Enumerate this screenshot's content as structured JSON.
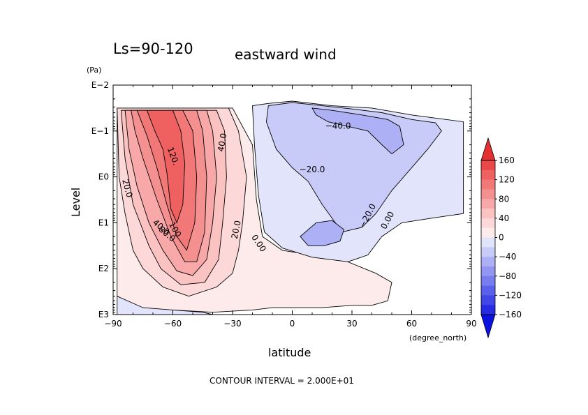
{
  "chart_data": {
    "type": "contour",
    "period_label": "Ls=90-120",
    "title": "eastward wind",
    "xlabel": "latitude",
    "x_units": "(degree_north)",
    "ylabel": "Level",
    "y_units": "(Pa)",
    "xlim": [
      -90,
      90
    ],
    "xticks": [
      -90,
      -60,
      -30,
      0,
      30,
      60,
      90
    ],
    "xtick_labels": [
      "−90",
      "−60",
      "−30",
      "0",
      "30",
      "60",
      "90"
    ],
    "y_log_scale": true,
    "y_decades": [
      -2,
      -1,
      0,
      1,
      2,
      3
    ],
    "ytick_labels": [
      "E−2",
      "E−1",
      "E0",
      "E1",
      "E2",
      "E3"
    ],
    "contour_interval_text": "CONTOUR INTERVAL = 2.000E+01",
    "colorbar": {
      "labels": [
        "160",
        "120",
        "80",
        "40",
        "0",
        "−40",
        "−80",
        "−120",
        "−160"
      ],
      "bins": [
        {
          "from": 160,
          "to": 200,
          "color": "#e43030"
        },
        {
          "from": 140,
          "to": 160,
          "color": "#ea4848"
        },
        {
          "from": 120,
          "to": 140,
          "color": "#ef6060"
        },
        {
          "from": 100,
          "to": 120,
          "color": "#f27878"
        },
        {
          "from": 80,
          "to": 100,
          "color": "#f59090"
        },
        {
          "from": 60,
          "to": 80,
          "color": "#f8a8a8"
        },
        {
          "from": 40,
          "to": 60,
          "color": "#fbc2c2"
        },
        {
          "from": 20,
          "to": 40,
          "color": "#fcd8d8"
        },
        {
          "from": 0,
          "to": 20,
          "color": "#fdeaea"
        },
        {
          "from": -20,
          "to": 0,
          "color": "#e2e4fb"
        },
        {
          "from": -40,
          "to": -20,
          "color": "#c8cbf8"
        },
        {
          "from": -60,
          "to": -40,
          "color": "#adb0f5"
        },
        {
          "from": -80,
          "to": -60,
          "color": "#9296f2"
        },
        {
          "from": -100,
          "to": -80,
          "color": "#777cee"
        },
        {
          "from": -120,
          "to": -100,
          "color": "#5c61eb"
        },
        {
          "from": -140,
          "to": -120,
          "color": "#4147e7"
        },
        {
          "from": -160,
          "to": -140,
          "color": "#262ce4"
        },
        {
          "from": -200,
          "to": -160,
          "color": "#0b12e0"
        }
      ]
    },
    "regions": [
      {
        "name": "southern-westerly-jet",
        "value_range": [
          0,
          20
        ],
        "color": "#fdeaea",
        "outline": [
          [
            -88,
            -1.5
          ],
          [
            -30,
            -1.5
          ],
          [
            -20,
            -0.7
          ],
          [
            -18,
            0.5
          ],
          [
            -15,
            1.3
          ],
          [
            -5,
            1.6
          ],
          [
            25,
            1.8
          ],
          [
            42,
            2.1
          ],
          [
            50,
            2.3
          ],
          [
            48,
            2.7
          ],
          [
            40,
            2.8
          ],
          [
            30,
            2.8
          ],
          [
            15,
            2.85
          ],
          [
            -10,
            2.85
          ],
          [
            -20,
            2.9
          ],
          [
            -40,
            2.95
          ],
          [
            -60,
            2.9
          ],
          [
            -75,
            2.9
          ],
          [
            -88,
            2.6
          ]
        ]
      },
      {
        "name": "jet-20",
        "value_range": [
          20,
          40
        ],
        "color": "#fcd8d8",
        "outline": [
          [
            -88,
            -1.5
          ],
          [
            -32,
            -1.5
          ],
          [
            -27,
            -1.0
          ],
          [
            -23,
            0
          ],
          [
            -25,
            1.0
          ],
          [
            -27,
            1.6
          ],
          [
            -30,
            2.1
          ],
          [
            -38,
            2.4
          ],
          [
            -52,
            2.6
          ],
          [
            -65,
            2.4
          ],
          [
            -75,
            2.0
          ],
          [
            -80,
            1.6
          ],
          [
            -84,
            0.8
          ],
          [
            -87,
            0
          ]
        ]
      },
      {
        "name": "jet-40",
        "value_range": [
          40,
          60
        ],
        "color": "#fbc2c2",
        "outline": [
          [
            -86,
            -1.45
          ],
          [
            -38,
            -1.45
          ],
          [
            -34,
            -1.0
          ],
          [
            -33,
            0
          ],
          [
            -35,
            1.0
          ],
          [
            -37,
            1.8
          ],
          [
            -44,
            2.3
          ],
          [
            -56,
            2.35
          ],
          [
            -66,
            2.0
          ],
          [
            -72,
            1.5
          ],
          [
            -80,
            0.6
          ],
          [
            -84,
            -0.4
          ]
        ]
      },
      {
        "name": "jet-60",
        "value_range": [
          60,
          80
        ],
        "color": "#f8a8a8",
        "outline": [
          [
            -84,
            -1.45
          ],
          [
            -43,
            -1.45
          ],
          [
            -40,
            -1.0
          ],
          [
            -38,
            0
          ],
          [
            -40,
            1.0
          ],
          [
            -43,
            1.8
          ],
          [
            -50,
            2.15
          ],
          [
            -58,
            2.05
          ],
          [
            -65,
            1.6
          ],
          [
            -72,
            1.0
          ],
          [
            -78,
            0.2
          ],
          [
            -82,
            -0.6
          ]
        ]
      },
      {
        "name": "jet-80",
        "value_range": [
          80,
          100
        ],
        "color": "#f59090",
        "outline": [
          [
            -81,
            -1.45
          ],
          [
            -48,
            -1.45
          ],
          [
            -45,
            -1.0
          ],
          [
            -43,
            0
          ],
          [
            -44,
            1.2
          ],
          [
            -48,
            1.85
          ],
          [
            -54,
            1.85
          ],
          [
            -61,
            1.3
          ],
          [
            -68,
            0.5
          ],
          [
            -75,
            -0.4
          ],
          [
            -79,
            -1.0
          ]
        ]
      },
      {
        "name": "jet-100",
        "value_range": [
          100,
          120
        ],
        "color": "#f27878",
        "outline": [
          [
            -78,
            -1.45
          ],
          [
            -55,
            -1.45
          ],
          [
            -50,
            -1.0
          ],
          [
            -48,
            0
          ],
          [
            -49,
            1.0
          ],
          [
            -53,
            1.6
          ],
          [
            -58,
            1.3
          ],
          [
            -63,
            0.6
          ],
          [
            -68,
            -0.2
          ],
          [
            -73,
            -0.9
          ]
        ]
      },
      {
        "name": "jet-core-120",
        "value_range": [
          120,
          140
        ],
        "color": "#ef6060",
        "outline": [
          [
            -73,
            -1.45
          ],
          [
            -60,
            -1.45
          ],
          [
            -56,
            -1.0
          ],
          [
            -54,
            -0.3
          ],
          [
            -55,
            0.6
          ],
          [
            -58,
            1.0
          ],
          [
            -61,
            0.7
          ],
          [
            -63,
            -0.1
          ],
          [
            -65,
            -0.6
          ],
          [
            -69,
            -1.0
          ]
        ]
      },
      {
        "name": "easterly-region",
        "value_range": [
          -20,
          0
        ],
        "color": "#e2e4fb",
        "outline": [
          [
            -20,
            -1.55
          ],
          [
            -12,
            -1.6
          ],
          [
            0,
            -1.65
          ],
          [
            20,
            -1.55
          ],
          [
            40,
            -1.5
          ],
          [
            60,
            -1.35
          ],
          [
            86,
            -1.2
          ],
          [
            86,
            0.8
          ],
          [
            70,
            0.9
          ],
          [
            55,
            1.0
          ],
          [
            45,
            1.3
          ],
          [
            38,
            1.7
          ],
          [
            28,
            1.85
          ],
          [
            10,
            1.75
          ],
          [
            -5,
            1.55
          ],
          [
            -14,
            1.2
          ],
          [
            -17,
            0.4
          ],
          [
            -19,
            -0.7
          ]
        ]
      },
      {
        "name": "easterly-20",
        "value_range": [
          -40,
          -20
        ],
        "color": "#c8cbf8",
        "outline": [
          [
            -12,
            -1.55
          ],
          [
            0,
            -1.62
          ],
          [
            15,
            -1.55
          ],
          [
            30,
            -1.48
          ],
          [
            45,
            -1.4
          ],
          [
            60,
            -1.25
          ],
          [
            72,
            -1.18
          ],
          [
            75,
            -1.0
          ],
          [
            68,
            -0.6
          ],
          [
            60,
            -0.2
          ],
          [
            50,
            0.3
          ],
          [
            42,
            0.8
          ],
          [
            35,
            1.1
          ],
          [
            25,
            1.2
          ],
          [
            15,
            0.6
          ],
          [
            8,
            0.1
          ],
          [
            0,
            -0.2
          ],
          [
            -8,
            -0.6
          ],
          [
            -13,
            -1.2
          ]
        ]
      },
      {
        "name": "easterly-40-upper",
        "value_range": [
          -60,
          -40
        ],
        "color": "#adb0f5",
        "outline": [
          [
            10,
            -1.5
          ],
          [
            20,
            -1.45
          ],
          [
            35,
            -1.35
          ],
          [
            48,
            -1.25
          ],
          [
            54,
            -1.1
          ],
          [
            56,
            -0.7
          ],
          [
            50,
            -0.5
          ],
          [
            45,
            -0.7
          ],
          [
            38,
            -1.0
          ],
          [
            28,
            -1.1
          ],
          [
            18,
            -1.2
          ],
          [
            12,
            -1.35
          ]
        ]
      },
      {
        "name": "easterly-40-lower",
        "value_range": [
          -60,
          -40
        ],
        "color": "#adb0f5",
        "outline": [
          [
            4,
            1.3
          ],
          [
            12,
            1.0
          ],
          [
            20,
            0.95
          ],
          [
            26,
            1.15
          ],
          [
            24,
            1.4
          ],
          [
            16,
            1.5
          ],
          [
            8,
            1.5
          ]
        ]
      },
      {
        "name": "southern-easterly-patch",
        "value_range": [
          -20,
          0
        ],
        "color": "#e2e4fb",
        "outline": [
          [
            -88,
            2.6
          ],
          [
            -75,
            2.85
          ],
          [
            -60,
            2.9
          ],
          [
            -45,
            2.95
          ],
          [
            -40,
            3.0
          ],
          [
            -88,
            3.0
          ]
        ]
      }
    ],
    "contour_labels": [
      {
        "text": "−40.0",
        "lon": 23,
        "lev": -1.1,
        "angle": 0
      },
      {
        "text": "−20.0",
        "lon": 10,
        "lev": -0.15,
        "angle": 0
      },
      {
        "text": "−20.0",
        "lon": 38,
        "lev": 0.85,
        "angle": -62
      },
      {
        "text": "0.00",
        "lon": 48,
        "lev": 0.95,
        "angle": -62
      },
      {
        "text": "0.00",
        "lon": -17,
        "lev": 1.45,
        "angle": 55
      },
      {
        "text": "20.0",
        "lon": -28,
        "lev": 1.15,
        "angle": -78
      },
      {
        "text": "40.0",
        "lon": -35,
        "lev": -0.75,
        "angle": -80
      },
      {
        "text": "120.",
        "lon": -60,
        "lev": -0.45,
        "angle": 70
      },
      {
        "text": "20.0",
        "lon": -83,
        "lev": 0.25,
        "angle": 75
      },
      {
        "text": "40.0",
        "lon": -66,
        "lev": 1.1,
        "angle": 40
      },
      {
        "text": "80.0",
        "lon": -63,
        "lev": 1.25,
        "angle": 40
      },
      {
        "text": "100",
        "lon": -59,
        "lev": 1.15,
        "angle": 60
      }
    ]
  }
}
